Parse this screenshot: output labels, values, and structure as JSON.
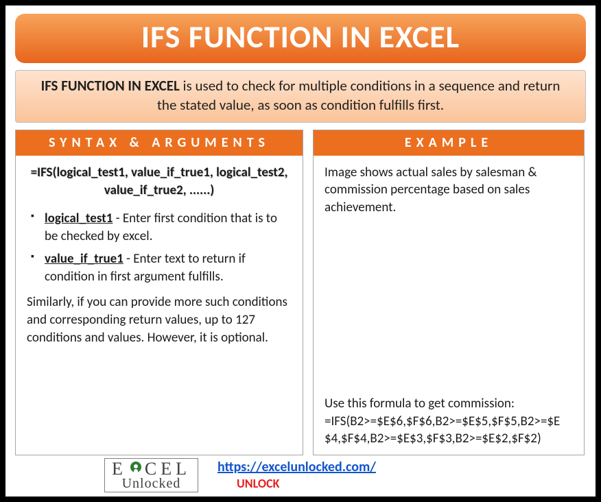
{
  "colors": {
    "orange_grad_top": "#f7a35a",
    "orange_grad_bot": "#e8641b",
    "title_text": "#ffffff",
    "desc_grad_top": "#ffe3cf",
    "desc_grad_bot": "#f9c49a",
    "desc_text": "#1f1f1f",
    "header_bg": "#eb6f1f",
    "header_text": "#ffffff",
    "body_text": "#1a1a1a",
    "link_blue": "#1155cc",
    "unlock_red": "#e81e1e",
    "logo_green": "#2e7d32",
    "logo_text": "#404040"
  },
  "title": "IFS FUNCTION IN EXCEL",
  "description": {
    "lead": "IFS FUNCTION IN EXCEL",
    "rest": " is used to check for multiple conditions in a sequence and return the stated value, as soon as condition fulfills first."
  },
  "syntax": {
    "header": "SYNTAX & ARGUMENTS",
    "formula": "=IFS(logical_test1, value_if_true1, logical_test2, value_if_true2, ......)",
    "args": [
      {
        "name": "logical_test1",
        "desc": " - Enter first condition that is to be checked by excel."
      },
      {
        "name": "value_if_true1",
        "desc": " - Enter text to return if condition in first argument fulfills."
      }
    ],
    "note": "Similarly, if you can provide more such conditions and corresponding return values, up to 127 conditions and values. However, it is optional."
  },
  "example": {
    "header": "EXAMPLE",
    "intro": "Image shows actual sales by salesman & commission percentage based on sales achievement.",
    "formula_label": "Use this formula to get commission:",
    "formula": "=IFS(B2>=$E$6,$F$6,B2>=$E$5,$F$5,B2>=$E$4,$F$4,B2>=$E$3,$F$3,B2>=$E$2,$F$2)"
  },
  "footer": {
    "logo_top_left": "E",
    "logo_top_right": "CEL",
    "logo_bottom": "Unlocked",
    "url": "https://excelunlocked.com/",
    "unlock": "UNLOCK"
  },
  "layout": {
    "left_col_width": 420,
    "right_col_width": 396
  }
}
